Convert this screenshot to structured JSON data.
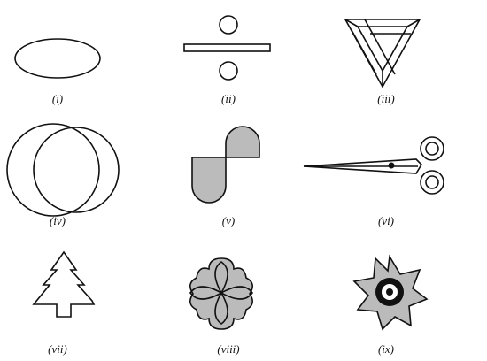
{
  "figures": [
    {
      "label": "(i)"
    },
    {
      "label": "(ii)"
    },
    {
      "label": "(iii)"
    },
    {
      "label": "(iv)"
    },
    {
      "label": "(v)"
    },
    {
      "label": "(vi)"
    },
    {
      "label": "(vii)"
    },
    {
      "label": "(viii)"
    },
    {
      "label": "(ix)"
    }
  ]
}
